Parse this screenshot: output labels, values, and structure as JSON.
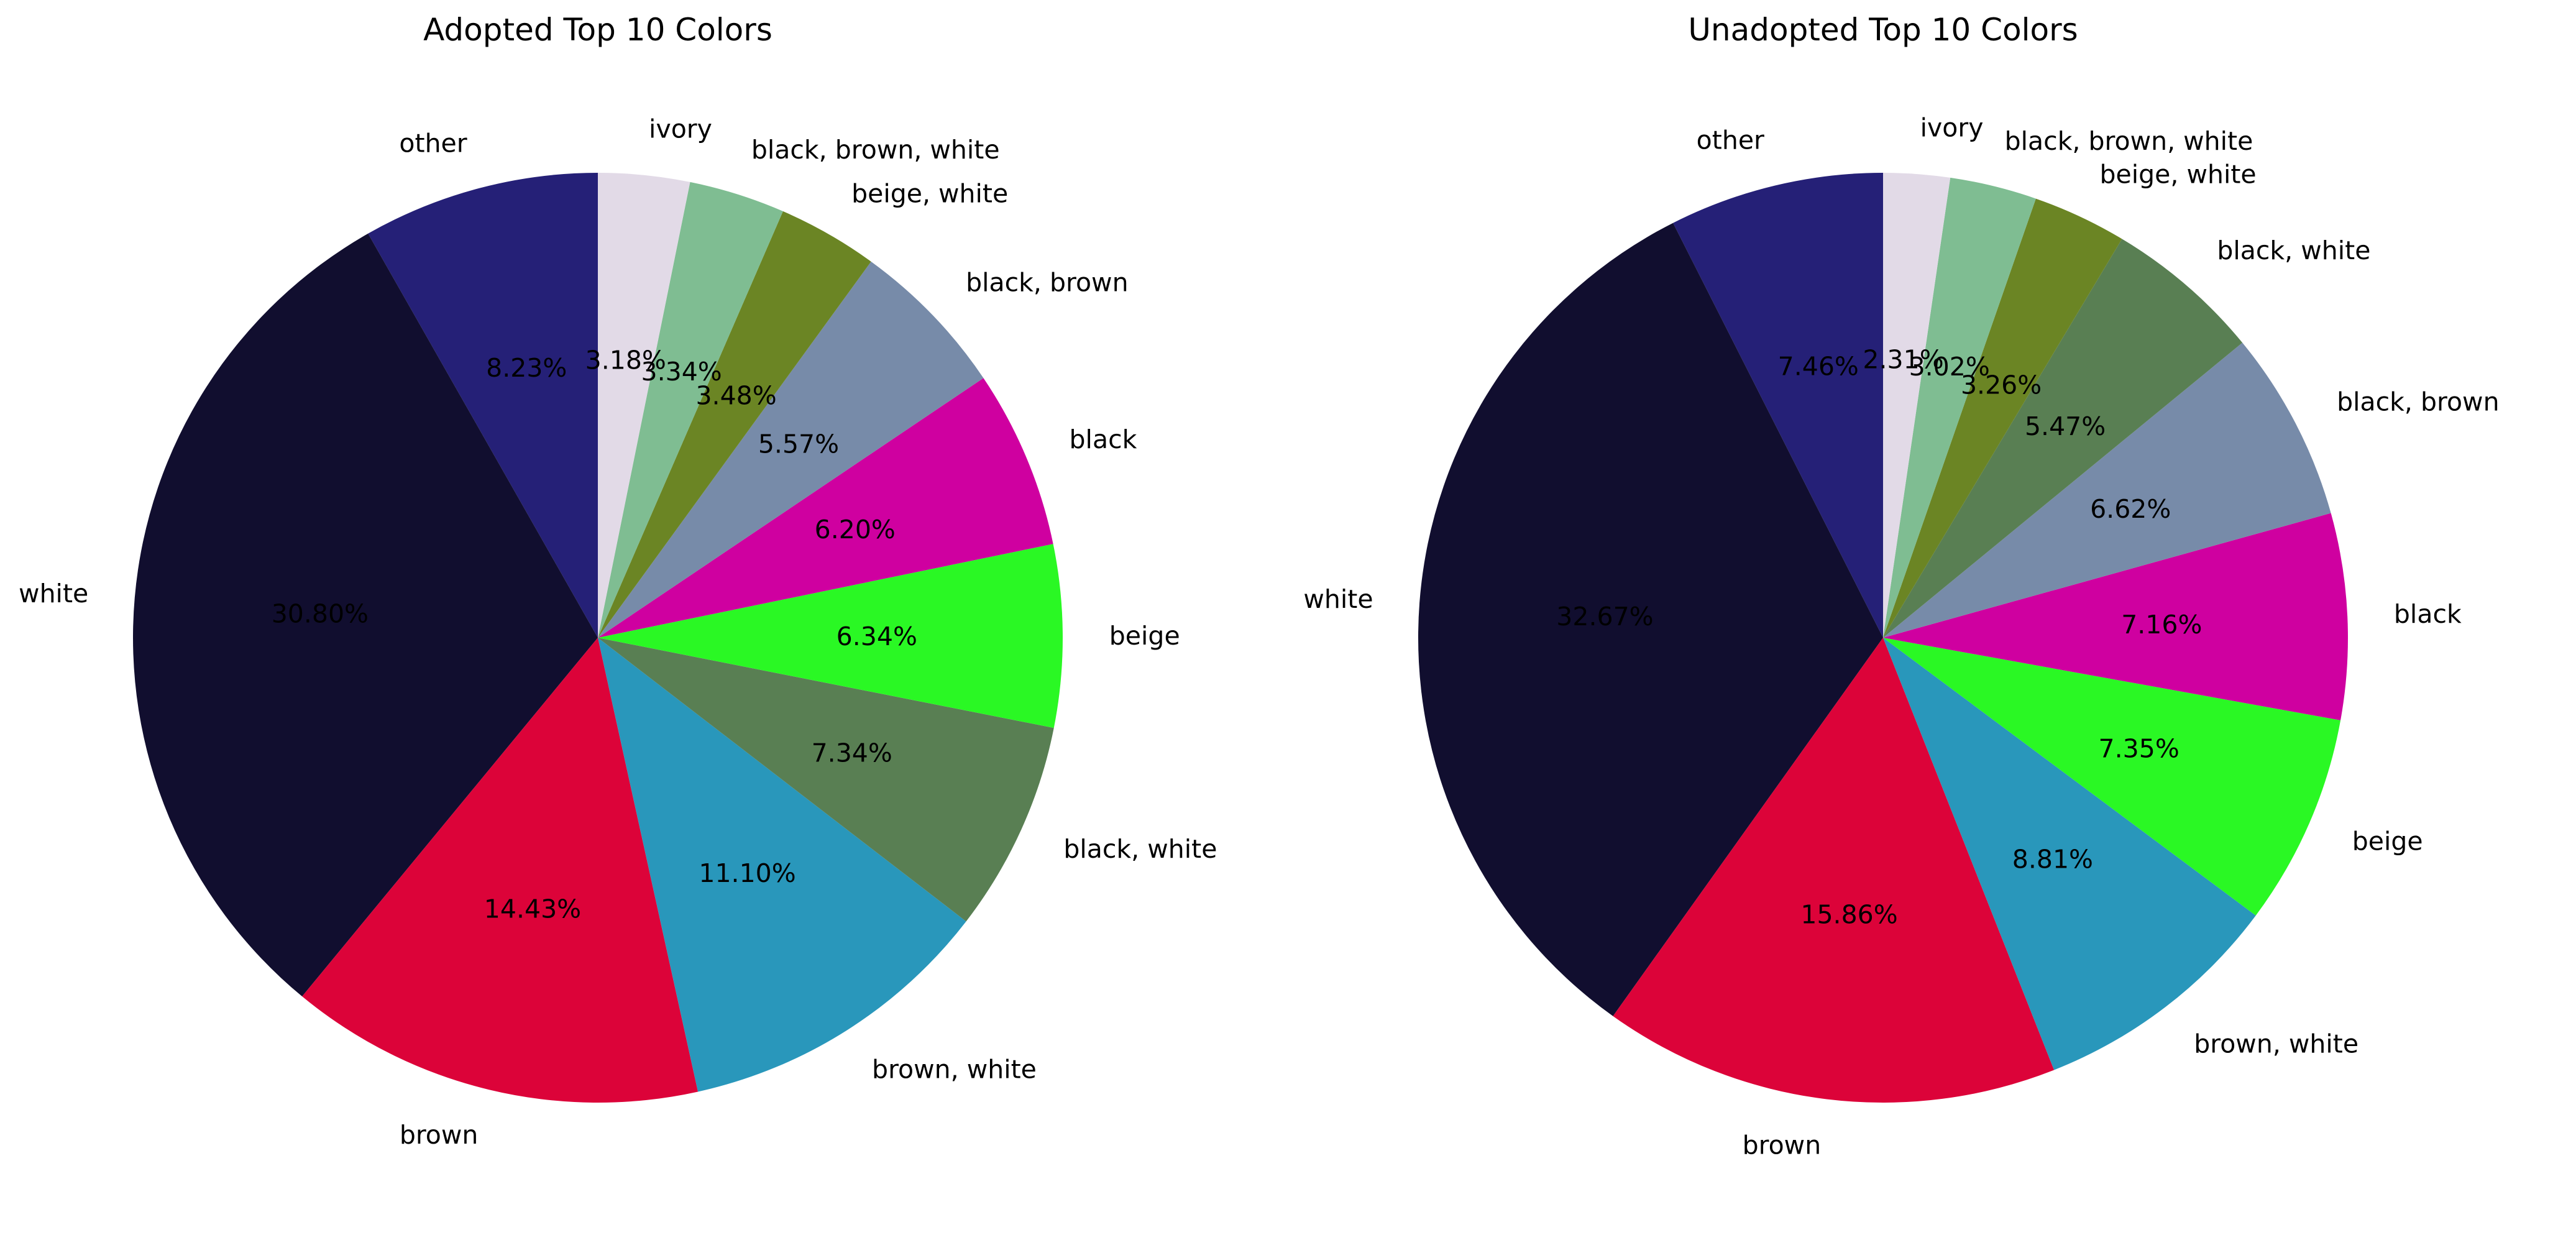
{
  "chart_data": [
    {
      "type": "pie",
      "title": "Adopted Top 10 Colors",
      "start_angle_deg": 90,
      "direction": "counterclockwise",
      "slices": [
        {
          "label": "other",
          "value": 8.23,
          "pct_label": "8.23%",
          "color": "#252077"
        },
        {
          "label": "white",
          "value": 30.8,
          "pct_label": "30.80%",
          "color": "#110e2f"
        },
        {
          "label": "brown",
          "value": 14.43,
          "pct_label": "14.43%",
          "color": "#dc0339"
        },
        {
          "label": "brown, white",
          "value": 11.1,
          "pct_label": "11.10%",
          "color": "#2997bb"
        },
        {
          "label": "black, white",
          "value": 7.34,
          "pct_label": "7.34%",
          "color": "#597f53"
        },
        {
          "label": "beige",
          "value": 6.34,
          "pct_label": "6.34%",
          "color": "#2af824"
        },
        {
          "label": "black",
          "value": 6.2,
          "pct_label": "6.20%",
          "color": "#cf00a0"
        },
        {
          "label": "black, brown",
          "value": 5.57,
          "pct_label": "5.57%",
          "color": "#778ba9"
        },
        {
          "label": "beige, white",
          "value": 3.48,
          "pct_label": "3.48%",
          "color": "#6b8524"
        },
        {
          "label": "black, brown, white",
          "value": 3.34,
          "pct_label": "3.34%",
          "color": "#7fbd92"
        },
        {
          "label": "ivory",
          "value": 3.18,
          "pct_label": "3.18%",
          "color": "#e2dae7"
        }
      ]
    },
    {
      "type": "pie",
      "title": "Unadopted Top 10 Colors",
      "start_angle_deg": 90,
      "direction": "counterclockwise",
      "slices": [
        {
          "label": "other",
          "value": 7.46,
          "pct_label": "7.46%",
          "color": "#252077"
        },
        {
          "label": "white",
          "value": 32.67,
          "pct_label": "32.67%",
          "color": "#110e2f"
        },
        {
          "label": "brown",
          "value": 15.86,
          "pct_label": "15.86%",
          "color": "#dc0339"
        },
        {
          "label": "brown, white",
          "value": 8.81,
          "pct_label": "8.81%",
          "color": "#2997bb"
        },
        {
          "label": "beige",
          "value": 7.35,
          "pct_label": "7.35%",
          "color": "#2af824"
        },
        {
          "label": "black",
          "value": 7.16,
          "pct_label": "7.16%",
          "color": "#cf00a0"
        },
        {
          "label": "black, brown",
          "value": 6.62,
          "pct_label": "6.62%",
          "color": "#778ba9"
        },
        {
          "label": "black, white",
          "value": 5.47,
          "pct_label": "5.47%",
          "color": "#597f53"
        },
        {
          "label": "beige, white",
          "value": 3.26,
          "pct_label": "3.26%",
          "color": "#6b8524"
        },
        {
          "label": "black, brown, white",
          "value": 3.02,
          "pct_label": "3.02%",
          "color": "#7fbd92"
        },
        {
          "label": "ivory",
          "value": 2.31,
          "pct_label": "2.31%",
          "color": "#e2dae7"
        }
      ]
    }
  ]
}
